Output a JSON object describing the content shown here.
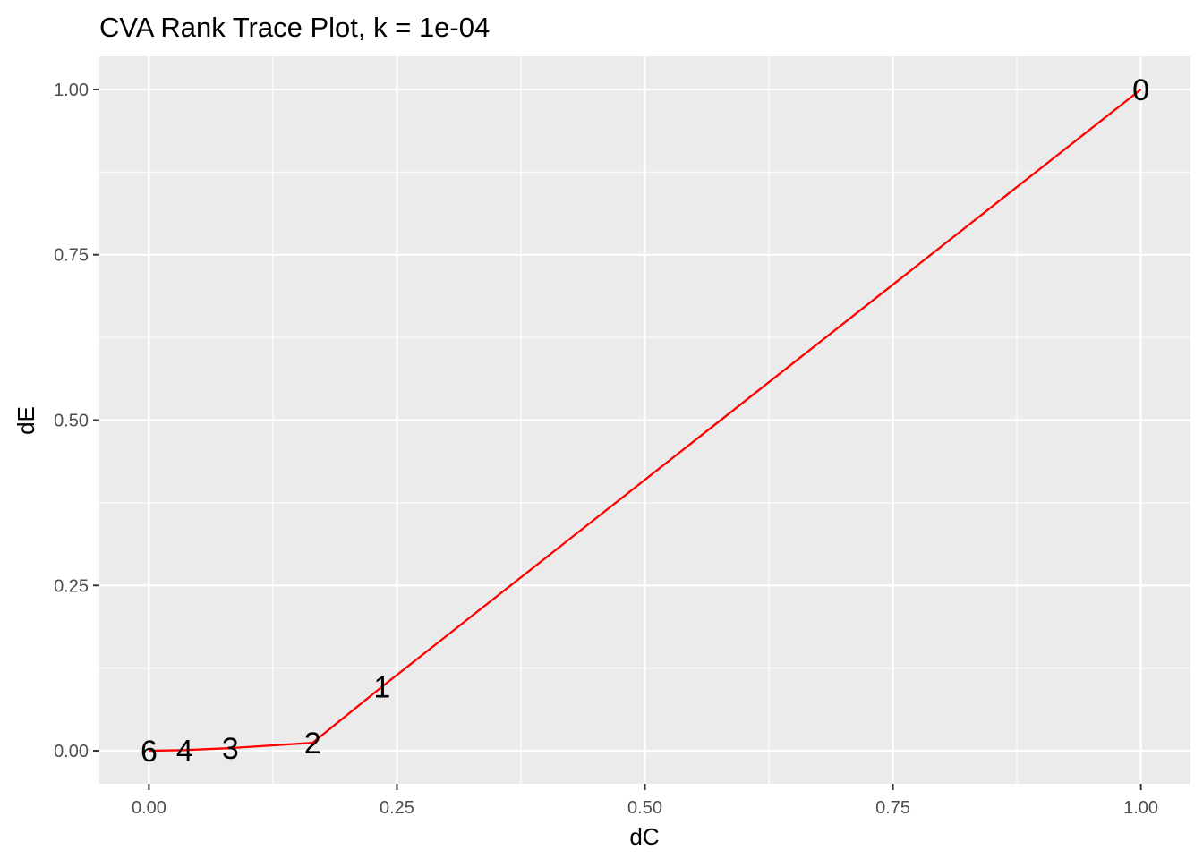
{
  "chart_data": {
    "type": "line",
    "title": "CVA Rank Trace Plot, k = 1e-04",
    "xlabel": "dC",
    "ylabel": "dE",
    "xlim": [
      -0.05,
      1.05
    ],
    "ylim": [
      -0.05,
      1.05
    ],
    "xticks": [
      0.0,
      0.25,
      0.5,
      0.75,
      1.0
    ],
    "xtick_labels": [
      "0.00",
      "0.25",
      "0.50",
      "0.75",
      "1.00"
    ],
    "yticks": [
      0.0,
      0.25,
      0.5,
      0.75,
      1.0
    ],
    "ytick_labels": [
      "0.00",
      "0.25",
      "0.50",
      "0.75",
      "1.00"
    ],
    "grid": true,
    "legend": "none",
    "line_color": "#ff0000",
    "panel_color": "#ebebeb",
    "grid_color": "#ffffff",
    "series": [
      {
        "x": [
          1.0,
          0.235,
          0.165,
          0.082,
          0.036,
          0.0
        ],
        "y": [
          1.0,
          0.097,
          0.012,
          0.004,
          0.001,
          0.0
        ],
        "labels": [
          "0",
          "1",
          "2",
          "3",
          "4",
          "6"
        ]
      }
    ]
  }
}
